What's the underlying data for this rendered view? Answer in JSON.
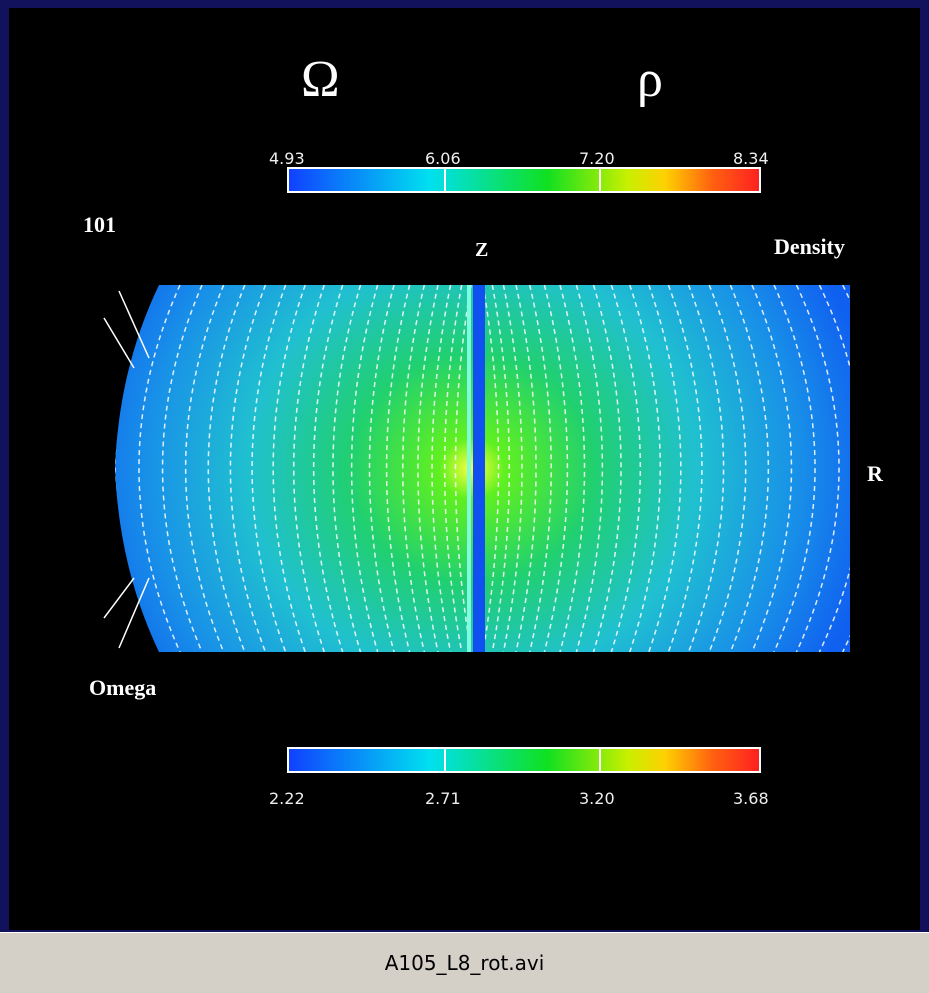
{
  "symbols": {
    "omega": "Ω",
    "rho": "ρ"
  },
  "density_colorbar": {
    "labels": [
      "4.93",
      "6.06",
      "7.20",
      "8.34"
    ]
  },
  "frame_label": "101",
  "axis_labels": {
    "z": "Z",
    "r": "R"
  },
  "panel_labels": {
    "top_right": "Density",
    "bottom_left": "Omega"
  },
  "omega_colorbar": {
    "labels": [
      "2.22",
      "2.71",
      "3.20",
      "3.68"
    ]
  },
  "status_bar": {
    "filename": "A105_L8_rot.avi"
  }
}
